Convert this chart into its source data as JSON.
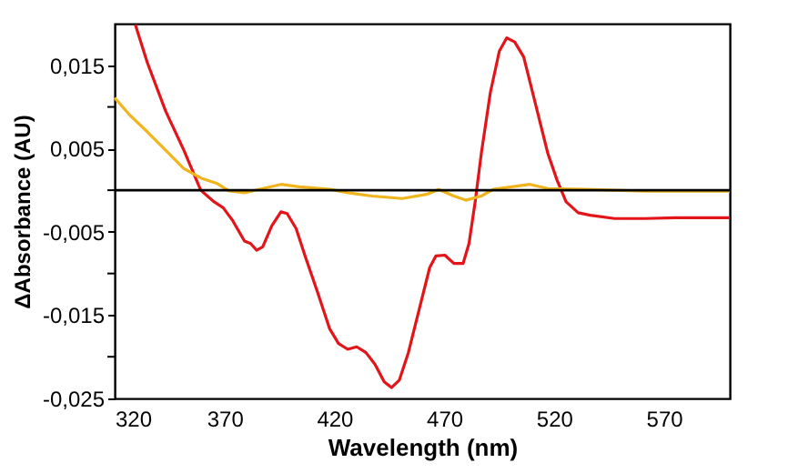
{
  "chart_data": {
    "type": "line",
    "xlabel": "Wavelength (nm)",
    "ylabel": "ΔAbsorbance (AU)",
    "xlim": [
      320,
      600
    ],
    "ylim": [
      -0.025,
      0.02
    ],
    "xticks": [
      320,
      370,
      420,
      470,
      520,
      570
    ],
    "yticks": [
      {
        "value": -0.025,
        "label": "-0,025"
      },
      {
        "value": -0.02,
        "label": null
      },
      {
        "value": -0.015,
        "label": "-0,015"
      },
      {
        "value": -0.01,
        "label": null
      },
      {
        "value": -0.005,
        "label": "-0,005"
      },
      {
        "value": 0,
        "label": null
      },
      {
        "value": 0.005,
        "label": "0,005"
      },
      {
        "value": 0.01,
        "label": null
      },
      {
        "value": 0.015,
        "label": "0,015"
      }
    ],
    "grid": false,
    "legend": false,
    "line_style": "solid",
    "marker": "none",
    "ref_lines": [
      {
        "axis": "y",
        "value": 0,
        "label": null,
        "color": "#000000"
      }
    ],
    "series": [
      {
        "color": "#e3151a",
        "x": [
          329.4,
          334.9,
          343.2,
          351.5,
          359.2,
          365.3,
          369.4,
          373.6,
          379.1,
          381.9,
          384.6,
          387.4,
          391.5,
          395.7,
          398.5,
          402.6,
          406.7,
          412.3,
          417.8,
          421.9,
          426.1,
          430.2,
          434.4,
          438.5,
          442.7,
          446.0,
          449.6,
          453.7,
          459.2,
          463.4,
          466.2,
          470.3,
          474.4,
          478.6,
          481.3,
          484.1,
          486.9,
          491.0,
          495.1,
          498.5,
          502.1,
          506.2,
          511.7,
          517.2,
          521.4,
          525.5,
          531.0,
          536.5,
          547.6,
          561.4,
          575.2,
          600
        ],
        "values": [
          0.0199,
          0.0153,
          0.0095,
          0.0048,
          0,
          -0.0014,
          -0.0021,
          -0.0036,
          -0.0061,
          -0.0064,
          -0.0072,
          -0.0068,
          -0.0043,
          -0.0026,
          -0.0028,
          -0.0046,
          -0.0079,
          -0.0122,
          -0.0166,
          -0.0184,
          -0.0191,
          -0.0188,
          -0.0195,
          -0.0209,
          -0.023,
          -0.0237,
          -0.0228,
          -0.0195,
          -0.0137,
          -0.0093,
          -0.0079,
          -0.0078,
          -0.0088,
          -0.0088,
          -0.0064,
          -0.0014,
          0.0044,
          0.0117,
          0.0167,
          0.0183,
          0.0178,
          0.016,
          0.0102,
          0.0044,
          0.0012,
          -0.0014,
          -0.0027,
          -0.003,
          -0.0034,
          -0.0034,
          -0.0033,
          -0.0033
        ]
      },
      {
        "color": "#f0b41c",
        "x": [
          320,
          326.6,
          334.9,
          343.2,
          351.5,
          359.8,
          366.7,
          372.2,
          379.1,
          387.4,
          395.7,
          404.0,
          418.0,
          426.1,
          437.1,
          450.9,
          462.0,
          467.5,
          474.4,
          479.9,
          486.9,
          492.4,
          500.7,
          509.0,
          517.2,
          533.8,
          561.4,
          600
        ],
        "values": [
          0.0111,
          0.0091,
          0.007,
          0.0048,
          0.0026,
          0.0014,
          0.0008,
          -0.0001,
          -0.0003,
          0.0002,
          0.0007,
          0.0004,
          0.0001,
          -0.0003,
          -0.0007,
          -0.001,
          -0.0005,
          0.0001,
          -0.0007,
          -0.0012,
          -0.0007,
          0.0001,
          0.0004,
          0.0007,
          0.0002,
          0.0001,
          -0.0001,
          -0.0001
        ]
      }
    ]
  }
}
